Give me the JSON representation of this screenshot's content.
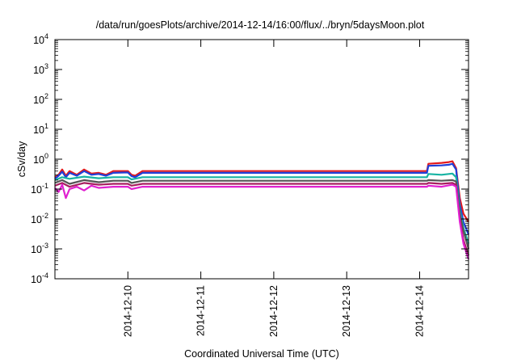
{
  "chart_data": {
    "type": "line",
    "title": "/data/run/goesPlots/archive/2014-12-14/16:00/flux/../bryn/5daysMoon.plot",
    "xlabel": "Coordinated Universal Time (UTC)",
    "ylabel": "cSv/day",
    "y_scale": "log",
    "ylim_exponents": [
      -4,
      4
    ],
    "y_tick_exponents": [
      {
        "base": "10",
        "exp": "-4",
        "value": -4
      },
      {
        "base": "10",
        "exp": "-3",
        "value": -3
      },
      {
        "base": "10",
        "exp": "-2",
        "value": -2
      },
      {
        "base": "10",
        "exp": "-1",
        "value": -1
      },
      {
        "base": "10",
        "exp": "0",
        "value": 0
      },
      {
        "base": "10",
        "exp": "1",
        "value": 1
      },
      {
        "base": "10",
        "exp": "2",
        "value": 2
      },
      {
        "base": "10",
        "exp": "3",
        "value": 3
      },
      {
        "base": "10",
        "exp": "4",
        "value": 4
      }
    ],
    "x_ticks": [
      {
        "label": "2014-12-10",
        "day": 10
      },
      {
        "label": "2014-12-11",
        "day": 11
      },
      {
        "label": "2014-12-12",
        "day": 12
      },
      {
        "label": "2014-12-13",
        "day": 13
      },
      {
        "label": "2014-12-14",
        "day": 14
      }
    ],
    "xlim_day": [
      9.0,
      14.67
    ],
    "grid": false,
    "legend": "none",
    "series": [
      {
        "color": "#e41a1c",
        "points": [
          [
            9.0,
            0.25
          ],
          [
            9.05,
            0.3
          ],
          [
            9.1,
            0.45
          ],
          [
            9.15,
            0.28
          ],
          [
            9.2,
            0.4
          ],
          [
            9.3,
            0.3
          ],
          [
            9.4,
            0.45
          ],
          [
            9.5,
            0.33
          ],
          [
            9.6,
            0.35
          ],
          [
            9.7,
            0.3
          ],
          [
            9.8,
            0.4
          ],
          [
            10.0,
            0.4
          ],
          [
            10.05,
            0.3
          ],
          [
            10.1,
            0.28
          ],
          [
            10.2,
            0.4
          ],
          [
            14.1,
            0.4
          ],
          [
            14.12,
            0.7
          ],
          [
            14.3,
            0.75
          ],
          [
            14.4,
            0.8
          ],
          [
            14.45,
            0.85
          ],
          [
            14.5,
            0.5
          ],
          [
            14.55,
            0.05
          ],
          [
            14.6,
            0.015
          ],
          [
            14.67,
            0.008
          ]
        ]
      },
      {
        "color": "#1f3fd9",
        "points": [
          [
            9.0,
            0.22
          ],
          [
            9.05,
            0.28
          ],
          [
            9.1,
            0.38
          ],
          [
            9.15,
            0.25
          ],
          [
            9.2,
            0.35
          ],
          [
            9.3,
            0.28
          ],
          [
            9.4,
            0.4
          ],
          [
            9.5,
            0.3
          ],
          [
            9.6,
            0.32
          ],
          [
            9.7,
            0.28
          ],
          [
            9.8,
            0.35
          ],
          [
            10.0,
            0.36
          ],
          [
            10.05,
            0.27
          ],
          [
            10.1,
            0.25
          ],
          [
            10.2,
            0.35
          ],
          [
            14.1,
            0.35
          ],
          [
            14.12,
            0.6
          ],
          [
            14.3,
            0.62
          ],
          [
            14.4,
            0.65
          ],
          [
            14.45,
            0.7
          ],
          [
            14.5,
            0.45
          ],
          [
            14.55,
            0.03
          ],
          [
            14.6,
            0.008
          ],
          [
            14.67,
            0.003
          ]
        ]
      },
      {
        "color": "#17b3a3",
        "points": [
          [
            9.0,
            0.2
          ],
          [
            9.1,
            0.25
          ],
          [
            9.2,
            0.22
          ],
          [
            9.4,
            0.26
          ],
          [
            9.6,
            0.23
          ],
          [
            9.8,
            0.25
          ],
          [
            10.0,
            0.25
          ],
          [
            10.05,
            0.21
          ],
          [
            10.2,
            0.25
          ],
          [
            14.1,
            0.25
          ],
          [
            14.12,
            0.32
          ],
          [
            14.3,
            0.3
          ],
          [
            14.45,
            0.33
          ],
          [
            14.5,
            0.25
          ],
          [
            14.55,
            0.02
          ],
          [
            14.6,
            0.005
          ],
          [
            14.67,
            0.0015
          ]
        ]
      },
      {
        "color": "#555555",
        "points": [
          [
            9.0,
            0.16
          ],
          [
            9.1,
            0.2
          ],
          [
            9.2,
            0.15
          ],
          [
            9.4,
            0.2
          ],
          [
            9.6,
            0.17
          ],
          [
            9.8,
            0.19
          ],
          [
            10.0,
            0.19
          ],
          [
            10.05,
            0.16
          ],
          [
            10.2,
            0.19
          ],
          [
            14.1,
            0.19
          ],
          [
            14.12,
            0.2
          ],
          [
            14.3,
            0.19
          ],
          [
            14.45,
            0.2
          ],
          [
            14.5,
            0.18
          ],
          [
            14.55,
            0.015
          ],
          [
            14.6,
            0.004
          ],
          [
            14.67,
            0.001
          ]
        ]
      },
      {
        "color": "#a81e60",
        "points": [
          [
            9.0,
            0.13
          ],
          [
            9.1,
            0.16
          ],
          [
            9.2,
            0.12
          ],
          [
            9.4,
            0.16
          ],
          [
            9.6,
            0.14
          ],
          [
            9.8,
            0.15
          ],
          [
            10.0,
            0.15
          ],
          [
            10.05,
            0.13
          ],
          [
            10.2,
            0.15
          ],
          [
            14.1,
            0.15
          ],
          [
            14.12,
            0.16
          ],
          [
            14.3,
            0.15
          ],
          [
            14.45,
            0.16
          ],
          [
            14.5,
            0.14
          ],
          [
            14.55,
            0.01
          ],
          [
            14.6,
            0.002
          ],
          [
            14.67,
            0.0006
          ]
        ]
      },
      {
        "color": "#e020d0",
        "points": [
          [
            9.0,
            0.11
          ],
          [
            9.05,
            0.08
          ],
          [
            9.1,
            0.14
          ],
          [
            9.15,
            0.05
          ],
          [
            9.2,
            0.1
          ],
          [
            9.3,
            0.12
          ],
          [
            9.4,
            0.09
          ],
          [
            9.5,
            0.13
          ],
          [
            9.6,
            0.11
          ],
          [
            9.8,
            0.12
          ],
          [
            10.0,
            0.12
          ],
          [
            10.05,
            0.1
          ],
          [
            10.2,
            0.12
          ],
          [
            14.1,
            0.12
          ],
          [
            14.12,
            0.13
          ],
          [
            14.3,
            0.12
          ],
          [
            14.45,
            0.14
          ],
          [
            14.5,
            0.12
          ],
          [
            14.55,
            0.008
          ],
          [
            14.6,
            0.0015
          ],
          [
            14.67,
            0.00045
          ]
        ]
      }
    ]
  }
}
